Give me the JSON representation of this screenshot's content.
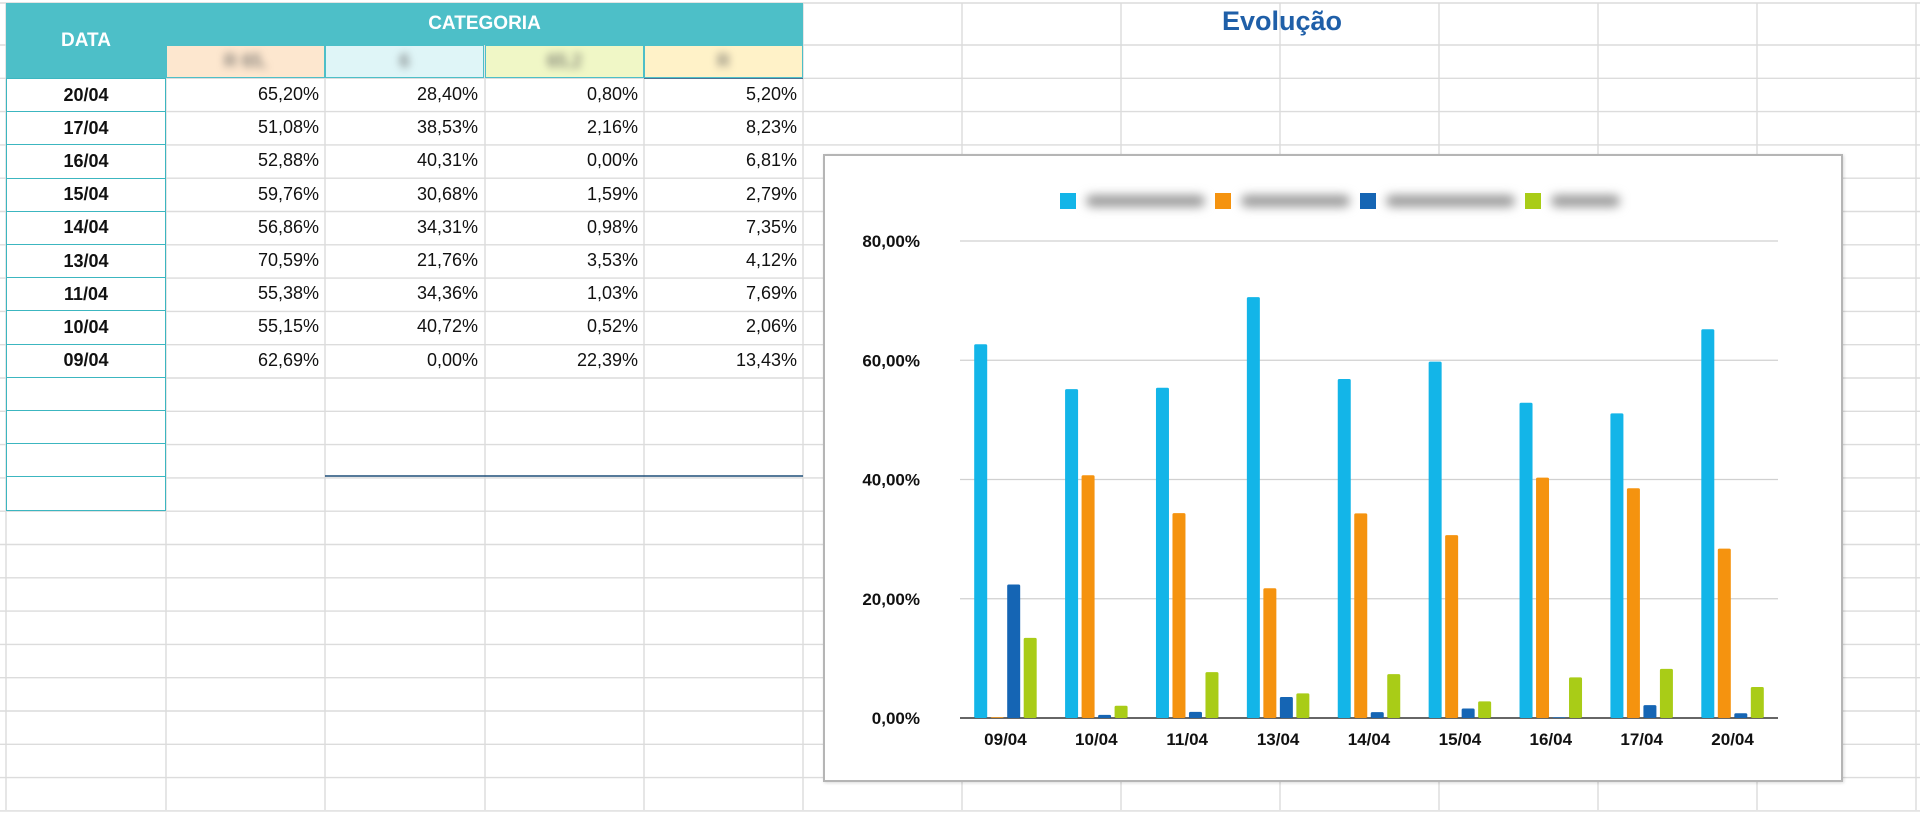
{
  "table": {
    "date_header": "DATA",
    "category_header": "CATEGORIA",
    "subheaders": [
      "R       65,",
      "6",
      "65,2",
      "R"
    ],
    "subheader_colors": [
      "#fde7cf",
      "#dff5f7",
      "#f0f7c6",
      "#fff2c8"
    ],
    "rows": [
      {
        "date": "20/04",
        "values": [
          "65,20%",
          "28,40%",
          "0,80%",
          "5,20%"
        ]
      },
      {
        "date": "17/04",
        "values": [
          "51,08%",
          "38,53%",
          "2,16%",
          "8,23%"
        ]
      },
      {
        "date": "16/04",
        "values": [
          "52,88%",
          "40,31%",
          "0,00%",
          "6,81%"
        ]
      },
      {
        "date": "15/04",
        "values": [
          "59,76%",
          "30,68%",
          "1,59%",
          "2,79%"
        ]
      },
      {
        "date": "14/04",
        "values": [
          "56,86%",
          "34,31%",
          "0,98%",
          "7,35%"
        ]
      },
      {
        "date": "13/04",
        "values": [
          "70,59%",
          "21,76%",
          "3,53%",
          "4,12%"
        ]
      },
      {
        "date": "11/04",
        "values": [
          "55,38%",
          "34,36%",
          "1,03%",
          "7,69%"
        ]
      },
      {
        "date": "10/04",
        "values": [
          "55,15%",
          "40,72%",
          "0,52%",
          "2,06%"
        ]
      },
      {
        "date": "09/04",
        "values": [
          "62,69%",
          "0,00%",
          "22,39%",
          "13,43%"
        ]
      }
    ]
  },
  "sheet_title": "Evolução",
  "chart_data": {
    "type": "bar",
    "title": "",
    "categories": [
      "09/04",
      "10/04",
      "11/04",
      "13/04",
      "14/04",
      "15/04",
      "16/04",
      "17/04",
      "20/04"
    ],
    "series": [
      {
        "color": "#13b5e8",
        "values": [
          62.69,
          55.15,
          55.38,
          70.59,
          56.86,
          59.76,
          52.88,
          51.08,
          65.2
        ]
      },
      {
        "color": "#f5930f",
        "values": [
          0.0,
          40.72,
          34.36,
          21.76,
          34.31,
          30.68,
          40.31,
          38.53,
          28.4
        ]
      },
      {
        "color": "#1565b4",
        "values": [
          22.39,
          0.52,
          1.03,
          3.53,
          0.98,
          1.59,
          0.0,
          2.16,
          0.8
        ]
      },
      {
        "color": "#a9cc17",
        "values": [
          13.43,
          2.06,
          7.69,
          4.12,
          7.35,
          2.79,
          6.81,
          8.23,
          5.2
        ]
      }
    ],
    "y_ticks": [
      "0,00%",
      "20,00%",
      "40,00%",
      "60,00%",
      "80,00%"
    ],
    "ylim": [
      0,
      80
    ],
    "grid": true,
    "legend_position": "top"
  }
}
